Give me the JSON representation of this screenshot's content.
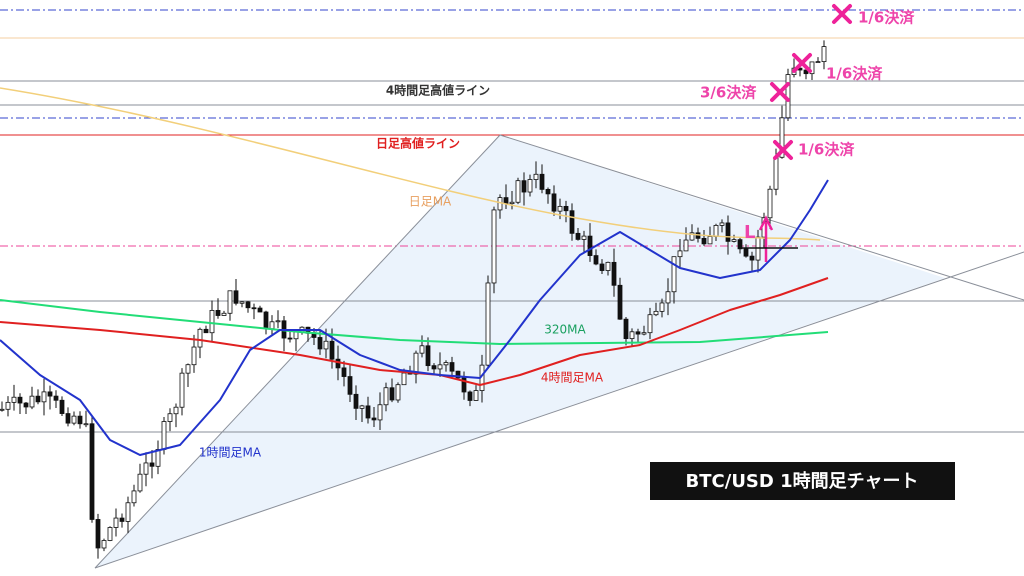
{
  "labels": {
    "high_4h": "4時間足高値ライン",
    "high_daily": "日足高値ライン",
    "ma_daily": "日足MA",
    "ma_320": "320MA",
    "ma_4h": "4時間足MA",
    "ma_1h": "1時間足MA",
    "title": "BTC/USD 1時間足チャート",
    "entry": "L"
  },
  "exits": [
    "1/6決済",
    "1/6決済",
    "3/6決済",
    "1/6決済"
  ]
}
